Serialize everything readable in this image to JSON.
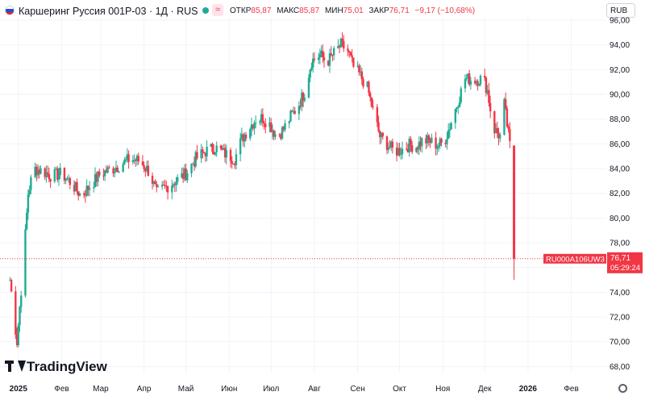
{
  "header": {
    "title": "Каршеринг Руссия 001Р-03 · 1Д · RUS",
    "ohlc": [
      {
        "label": "ОТКР",
        "value": "85,87"
      },
      {
        "label": "МАКС",
        "value": "85,87"
      },
      {
        "label": "МИН",
        "value": "75,01"
      },
      {
        "label": "ЗАКР",
        "value": "76,71"
      }
    ],
    "change": "−9,17 (−10,68%)",
    "currency": "RUB",
    "flag_colors": [
      "#ffffff",
      "#1f4fd1",
      "#e0202b"
    ],
    "up_color": "#22ab94",
    "down_color": "#f23645",
    "icons": [
      "market-status-dot-icon",
      "wave-icon",
      "settings-icon"
    ]
  },
  "price_tag": {
    "ticker": "RU000A106UW3",
    "price": "76,71",
    "countdown": "05:29:24",
    "color": "#f23645"
  },
  "logo": {
    "text": "TradingView"
  },
  "chart_data": {
    "type": "candlestick",
    "y_ticks": [
      "68,00",
      "70,00",
      "72,00",
      "74,00",
      "76,00",
      "78,00",
      "80,00",
      "82,00",
      "84,00",
      "86,00",
      "88,00",
      "90,00",
      "92,00",
      "94,00",
      "96,00"
    ],
    "y_range": [
      67.5,
      96.2
    ],
    "x_ticks": [
      "2025",
      "Фев",
      "Мар",
      "Апр",
      "Май",
      "Июн",
      "Июл",
      "Авг",
      "Сен",
      "Окт",
      "Ноя",
      "Дек",
      "2026",
      "Фев"
    ],
    "x_tick_dates": [
      "2025-01-01",
      "2025-02-01",
      "2025-03-01",
      "2025-04-01",
      "2025-05-01",
      "2025-06-01",
      "2025-07-01",
      "2025-08-01",
      "2025-09-01",
      "2025-10-01",
      "2025-11-01",
      "2025-12-01",
      "2026-01-01",
      "2026-02-01"
    ],
    "grid": true,
    "last_price": 76.71,
    "series_close": [
      [
        "2024-12-26",
        75.0
      ],
      [
        "2024-12-31",
        70.0
      ],
      [
        "2025-01-05",
        77.0
      ],
      [
        "2025-01-08",
        82.0
      ],
      [
        "2025-01-12",
        84.0
      ],
      [
        "2025-01-18",
        83.8
      ],
      [
        "2025-01-25",
        83.4
      ],
      [
        "2025-02-01",
        83.6
      ],
      [
        "2025-02-08",
        82.8
      ],
      [
        "2025-02-15",
        81.8
      ],
      [
        "2025-02-22",
        82.7
      ],
      [
        "2025-03-01",
        83.6
      ],
      [
        "2025-03-08",
        83.9
      ],
      [
        "2025-03-15",
        84.3
      ],
      [
        "2025-03-22",
        84.8
      ],
      [
        "2025-03-29",
        84.6
      ],
      [
        "2025-04-05",
        83.7
      ],
      [
        "2025-04-10",
        82.0
      ],
      [
        "2025-04-18",
        82.6
      ],
      [
        "2025-04-25",
        83.1
      ],
      [
        "2025-05-01",
        83.6
      ],
      [
        "2025-05-08",
        84.8
      ],
      [
        "2025-05-15",
        85.4
      ],
      [
        "2025-05-22",
        85.7
      ],
      [
        "2025-05-29",
        85.2
      ],
      [
        "2025-06-05",
        84.8
      ],
      [
        "2025-06-10",
        86.4
      ],
      [
        "2025-06-15",
        87.3
      ],
      [
        "2025-06-20",
        88.0
      ],
      [
        "2025-06-25",
        88.1
      ],
      [
        "2025-06-30",
        87.6
      ],
      [
        "2025-07-05",
        86.6
      ],
      [
        "2025-07-10",
        87.2
      ],
      [
        "2025-07-15",
        88.2
      ],
      [
        "2025-07-20",
        89.0
      ],
      [
        "2025-07-25",
        90.2
      ],
      [
        "2025-07-30",
        92.7
      ],
      [
        "2025-08-05",
        93.2
      ],
      [
        "2025-08-10",
        92.6
      ],
      [
        "2025-08-15",
        93.3
      ],
      [
        "2025-08-20",
        94.0
      ],
      [
        "2025-08-25",
        93.5
      ],
      [
        "2025-08-29",
        92.2
      ],
      [
        "2025-09-03",
        91.5
      ],
      [
        "2025-09-08",
        90.5
      ],
      [
        "2025-09-12",
        88.7
      ],
      [
        "2025-09-17",
        86.6
      ],
      [
        "2025-09-22",
        86.0
      ],
      [
        "2025-09-27",
        85.4
      ],
      [
        "2025-10-02",
        85.5
      ],
      [
        "2025-10-08",
        85.9
      ],
      [
        "2025-10-13",
        85.8
      ],
      [
        "2025-10-18",
        86.3
      ],
      [
        "2025-10-23",
        86.2
      ],
      [
        "2025-10-28",
        85.9
      ],
      [
        "2025-11-02",
        86.1
      ],
      [
        "2025-11-07",
        87.8
      ],
      [
        "2025-11-12",
        89.5
      ],
      [
        "2025-11-17",
        91.3
      ],
      [
        "2025-11-21",
        91.2
      ],
      [
        "2025-11-26",
        91.2
      ],
      [
        "2025-11-30",
        91.3
      ],
      [
        "2025-12-03",
        90.3
      ],
      [
        "2025-12-07",
        87.3
      ],
      [
        "2025-12-12",
        86.6
      ],
      [
        "2025-12-15",
        89.2
      ],
      [
        "2025-12-19",
        85.9
      ],
      [
        "2025-12-22",
        76.71
      ]
    ]
  }
}
